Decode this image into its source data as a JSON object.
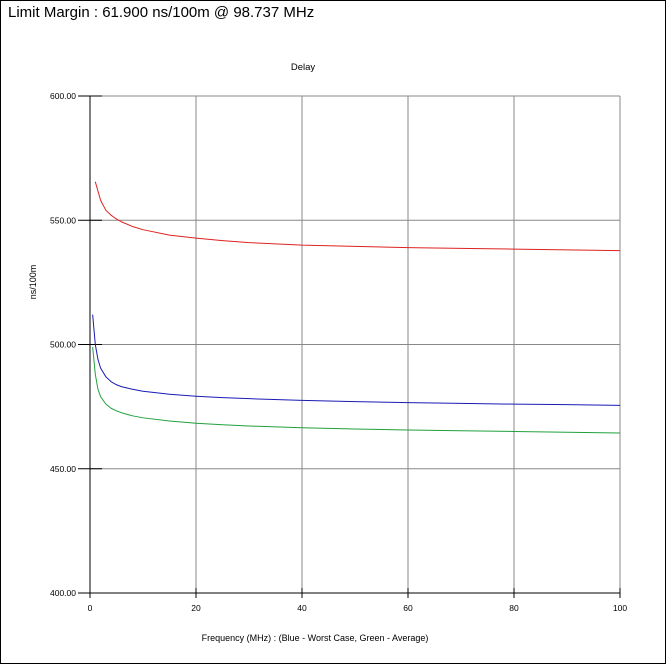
{
  "header": {
    "text": "Limit Margin : 61.900 ns/100m @ 98.737 MHz"
  },
  "chart_data": {
    "type": "line",
    "title": "Delay",
    "xlabel": "Frequency (MHz) : (Blue - Worst Case, Green - Average)",
    "ylabel": "ns/100m",
    "xlim": [
      0,
      100
    ],
    "ylim": [
      400,
      600
    ],
    "x_ticks": [
      "0",
      "20",
      "40",
      "60",
      "80",
      "100"
    ],
    "y_ticks": [
      "400.00",
      "450.00",
      "500.00",
      "550.00",
      "600.00"
    ],
    "grid": true,
    "series": [
      {
        "color": "#dd2222",
        "x": [
          1,
          2,
          3,
          4,
          5,
          6,
          8,
          10,
          15,
          20,
          25,
          30,
          40,
          50,
          60,
          70,
          80,
          90,
          100
        ],
        "y": [
          565.5,
          558,
          554,
          552,
          550.5,
          549.3,
          547.5,
          546.2,
          544,
          542.8,
          541.8,
          541,
          540,
          539.5,
          539,
          538.7,
          538.4,
          538.1,
          537.8
        ]
      },
      {
        "color": "#1a1ab4",
        "x": [
          0.5,
          1,
          1.5,
          2,
          3,
          4,
          5,
          6,
          8,
          10,
          15,
          20,
          25,
          30,
          40,
          50,
          60,
          70,
          80,
          90,
          100
        ],
        "y": [
          512,
          500,
          494,
          490.5,
          487,
          485,
          483.8,
          483,
          482,
          481.2,
          480,
          479.2,
          478.6,
          478.2,
          477.5,
          477,
          476.6,
          476.3,
          476,
          475.8,
          475.5
        ]
      },
      {
        "color": "#22a03c",
        "x": [
          0.5,
          1,
          1.5,
          2,
          3,
          4,
          5,
          6,
          8,
          10,
          15,
          20,
          25,
          30,
          40,
          50,
          60,
          70,
          80,
          90,
          100
        ],
        "y": [
          499,
          488,
          482,
          479,
          476,
          474.3,
          473.3,
          472.5,
          471.3,
          470.5,
          469.2,
          468.3,
          467.7,
          467.2,
          466.5,
          466,
          465.6,
          465.3,
          465,
          464.7,
          464.4
        ]
      }
    ]
  }
}
